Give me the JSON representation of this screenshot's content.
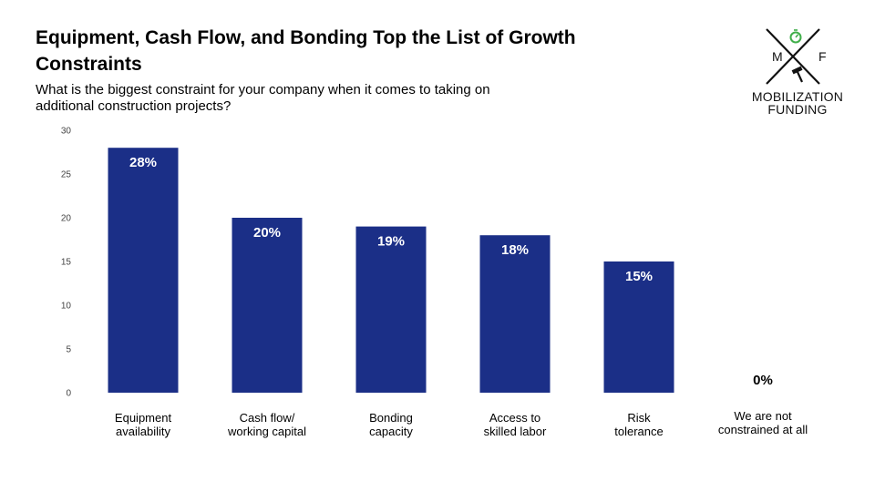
{
  "title": "Equipment, Cash Flow, and Bonding Top the List of Growth Constraints",
  "subtitle": "What is the biggest constraint for your company when it comes to taking on additional construction projects?",
  "logo": {
    "letter_left": "M",
    "letter_right": "F",
    "line1": "MOBILIZATION",
    "line2": "FUNDING",
    "accent_color": "#3fae49"
  },
  "colors": {
    "bar": "#1b2f87",
    "bar_label_inside": "#ffffff",
    "bar_label_outside": "#000000"
  },
  "chart_data": {
    "type": "bar",
    "title": "",
    "xlabel": "",
    "ylabel": "",
    "ylim": [
      0,
      30
    ],
    "yticks": [
      0,
      5,
      10,
      15,
      20,
      25,
      30
    ],
    "grid": false,
    "categories": [
      [
        "Equipment",
        "availability"
      ],
      [
        "Cash flow/",
        "working capital"
      ],
      [
        "Bonding",
        "capacity"
      ],
      [
        "Access to",
        "skilled labor"
      ],
      [
        "Risk",
        "tolerance"
      ],
      [
        "We are not",
        "constrained at all"
      ]
    ],
    "values": [
      28,
      20,
      19,
      18,
      15,
      0
    ],
    "labels": [
      "28%",
      "20%",
      "19%",
      "18%",
      "15%",
      "0%"
    ]
  }
}
